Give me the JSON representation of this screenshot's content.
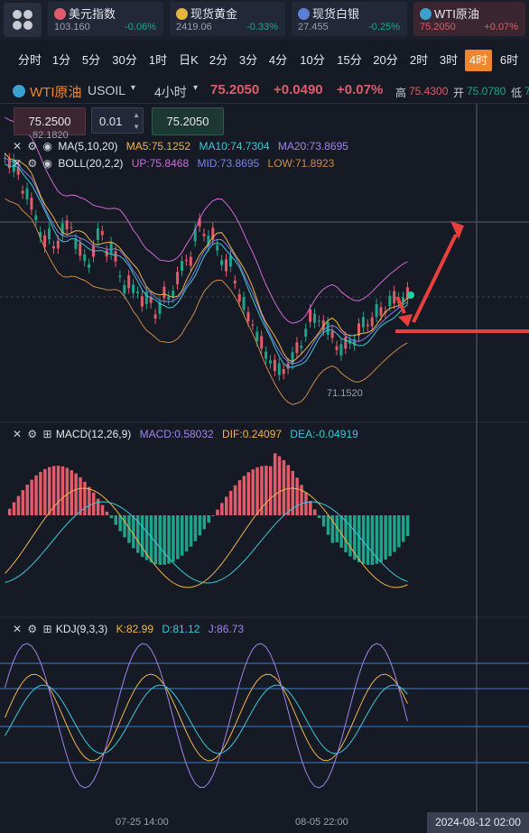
{
  "tickers": [
    {
      "name": "美元指数",
      "price": "103.160",
      "change": "-0.06%",
      "icon_color": "#e05c6a"
    },
    {
      "name": "现货黄金",
      "price": "2419.06",
      "change": "-0.33%",
      "icon_color": "#e6b53c"
    },
    {
      "name": "现货白银",
      "price": "27.455",
      "change": "-0.25%",
      "icon_color": "#5b7fd6"
    },
    {
      "name": "WTI原油",
      "price": "75.2050",
      "change": "+0.07%",
      "icon_color": "#3aa0d0"
    }
  ],
  "timeframes": [
    "分时",
    "1分",
    "5分",
    "30分",
    "1时",
    "日K",
    "2分",
    "3分",
    "4分",
    "10分",
    "15分",
    "20分",
    "2时",
    "3时",
    "4时",
    "6时"
  ],
  "active_timeframe": "4时",
  "symbol": {
    "name": "WTI原油",
    "code": "USOIL",
    "period": "4小时",
    "price": "75.2050",
    "change": "+0.0490",
    "change_pct": "+0.07%",
    "high_label": "高",
    "high": "75.4300",
    "open_label": "开",
    "open": "75.0780",
    "low_label": "低",
    "low": "7"
  },
  "order_panel": {
    "price_left": "75.2500",
    "lot": "0.01",
    "price_right": "75.2050"
  },
  "main_chart": {
    "max_label": "82.1820",
    "min_label": "71.1520",
    "ma": {
      "name": "MA(5,10,20)",
      "ma5": "MA5:75.1252",
      "ma10": "MA10:74.7304",
      "ma20": "MA20:73.8695"
    },
    "boll": {
      "name": "BOLL(20,2,2)",
      "up": "UP:75.8468",
      "mid": "MID:73.8695",
      "low": "LOW:71.8923"
    }
  },
  "macd": {
    "name": "MACD(12,26,9)",
    "macd": "MACD:0.58032",
    "dif": "DIF:0.24097",
    "dea": "DEA:-0.04919"
  },
  "kdj": {
    "name": "KDJ(9,3,3)",
    "k": "K:82.99",
    "d": "D:81.12",
    "j": "J:86.73"
  },
  "time_axis": {
    "labels": [
      "07-25 14:00",
      "08-05 22:00"
    ],
    "cursor": "2024-08-12 02:00"
  },
  "colors": {
    "up": "#e05c6a",
    "down": "#1fa38a",
    "accent": "#f0862f",
    "bg": "#161a25",
    "arrow": "#e8413c"
  }
}
